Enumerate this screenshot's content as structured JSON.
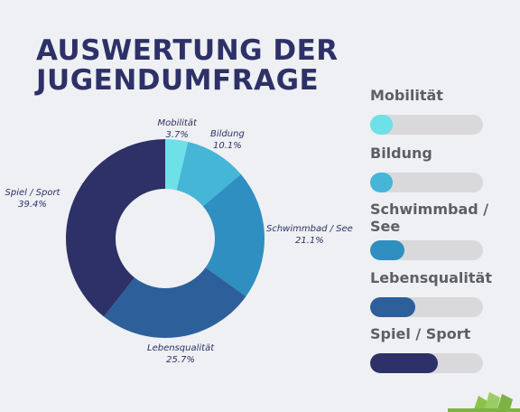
{
  "title": {
    "line1": "AUSWERTUNG DER",
    "line2": "JUGENDUMFRAGE"
  },
  "chart_data": {
    "type": "pie",
    "donut": true,
    "slices": [
      {
        "label": "Mobilität",
        "value": 3.7,
        "value_label": "3.7%",
        "color": "#6ee0e8"
      },
      {
        "label": "Bildung",
        "value": 10.1,
        "value_label": "10.1%",
        "color": "#45b5d8"
      },
      {
        "label": "Schwimmbad / See",
        "value": 21.1,
        "value_label": "21.1%",
        "color": "#2e8fc0"
      },
      {
        "label": "Lebensqualität",
        "value": 25.7,
        "value_label": "25.7%",
        "color": "#2d5f9a"
      },
      {
        "label": "Spiel / Sport",
        "value": 39.4,
        "value_label": "39.4%",
        "color": "#2d3167"
      }
    ]
  },
  "legend": {
    "items": [
      {
        "label": "Mobilität",
        "fill": 0.2,
        "color": "#6ee0e8"
      },
      {
        "label": "Bildung",
        "fill": 0.2,
        "color": "#45b5d8"
      },
      {
        "label": "Schwimmbad / See",
        "fill": 0.3,
        "color": "#2e8fc0"
      },
      {
        "label": "Lebensqualität",
        "fill": 0.4,
        "color": "#2d5f9a"
      },
      {
        "label": "Spiel / Sport",
        "fill": 0.6,
        "color": "#2d3167"
      }
    ]
  },
  "logo": {
    "icon": "book-logo-icon",
    "color": "#8bc34a"
  }
}
